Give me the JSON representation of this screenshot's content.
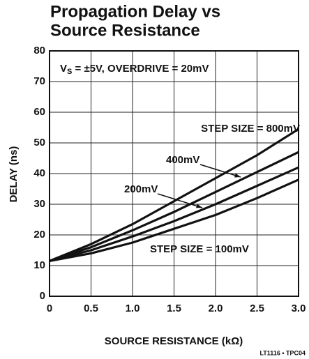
{
  "chart_data": {
    "type": "line",
    "title": [
      "Propagation Delay vs",
      "Source Resistance"
    ],
    "annotation": [
      "V",
      "S",
      " = ±5V, OVERDRIVE = 20mV"
    ],
    "xlabel": "SOURCE RESISTANCE (kΩ)",
    "ylabel": "DELAY (ns)",
    "footer": "LT1116 • TPC04",
    "x": [
      0,
      0.5,
      1.0,
      1.5,
      2.0,
      2.5,
      3.0
    ],
    "series": [
      {
        "name": "STEP SIZE = 800mV",
        "color": "#111111",
        "values": [
          11.5,
          17,
          23.5,
          31,
          38.5,
          46,
          54.5
        ]
      },
      {
        "name": "400mV",
        "color": "#111111",
        "values": [
          11.5,
          16,
          21.5,
          27.5,
          34,
          40.5,
          47
        ]
      },
      {
        "name": "200mV",
        "color": "#111111",
        "values": [
          11.5,
          15,
          19.5,
          24.5,
          30,
          36,
          42
        ]
      },
      {
        "name": "STEP SIZE = 100mV",
        "color": "#111111",
        "values": [
          11.5,
          14,
          17.5,
          22,
          26.5,
          32,
          38
        ]
      }
    ],
    "xlim": [
      0,
      3.0
    ],
    "xticks": [
      0,
      0.5,
      {
        "value": 1,
        "label": "1.0"
      },
      1.5,
      {
        "value": 2,
        "label": "2.0"
      },
      2.5,
      {
        "value": 3,
        "label": "3.0"
      }
    ],
    "ylim": [
      0,
      80
    ],
    "yticks": [
      0,
      10,
      20,
      30,
      40,
      50,
      60,
      70,
      80
    ],
    "grid": true
  }
}
